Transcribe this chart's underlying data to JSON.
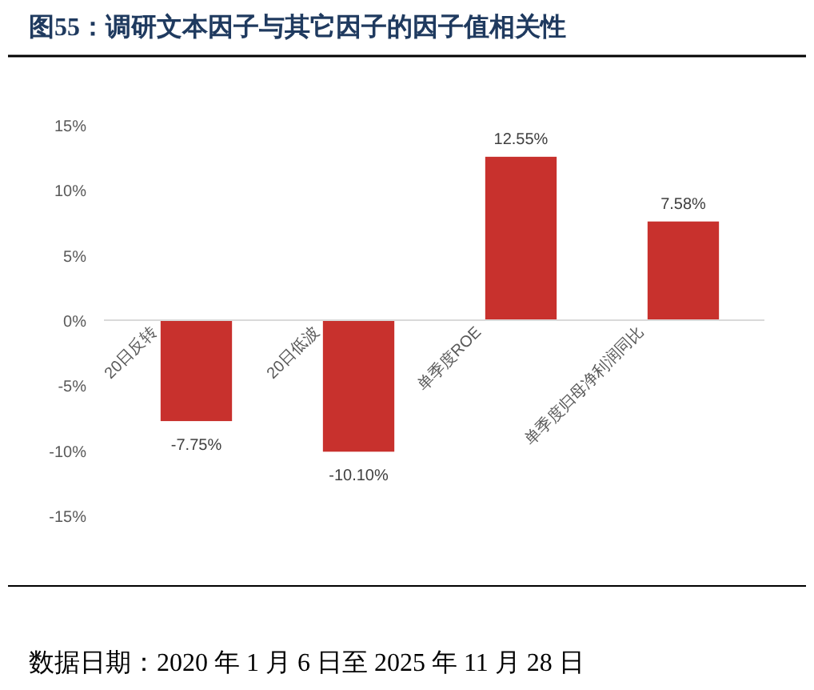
{
  "chart_data": {
    "type": "bar",
    "title": "图55：调研文本因子与其它因子的因子值相关性",
    "categories": [
      "20日反转",
      "20日低波",
      "单季度ROE",
      "单季度归母净利润同比"
    ],
    "values": [
      -7.75,
      -10.1,
      12.55,
      7.58
    ],
    "value_labels": [
      "-7.75%",
      "-10.10%",
      "12.55%",
      "7.58%"
    ],
    "color": "#c8312d",
    "ylim": [
      -15,
      15
    ],
    "yticks": [
      {
        "value": -15,
        "label": "-15%"
      },
      {
        "value": -10,
        "label": "-10%"
      },
      {
        "value": -5,
        "label": "-5%"
      },
      {
        "value": 0,
        "label": "0%"
      },
      {
        "value": 5,
        "label": "5%"
      },
      {
        "value": 10,
        "label": "10%"
      },
      {
        "value": 15,
        "label": "15%"
      }
    ],
    "annotations": [
      "数据日期：2020 年 1 月 6 日至 2025 年 11 月 28 日"
    ]
  }
}
